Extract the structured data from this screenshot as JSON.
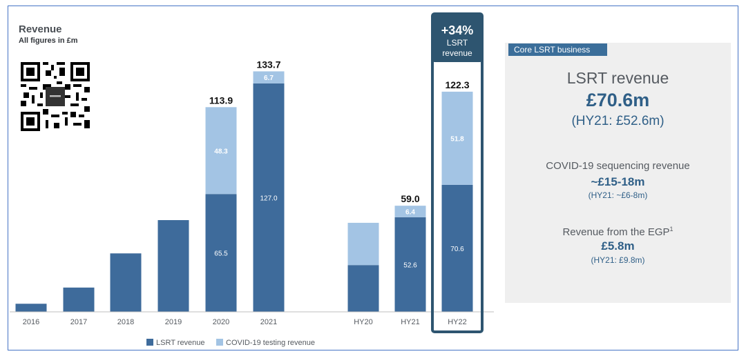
{
  "header": {
    "title": "Revenue",
    "subtitle": "All figures in £m"
  },
  "highlight": {
    "growth": "+34%",
    "line1": "LSRT",
    "line2": "revenue"
  },
  "panel": {
    "tag": "Core LSRT business",
    "main_label": "LSRT revenue",
    "main_value": "£70.6m",
    "main_sub": "(HY21: £52.6m)",
    "covid_label": "COVID-19 sequencing revenue",
    "covid_value": "~£15-18m",
    "covid_sub": "(HY21: ~£6-8m)",
    "egp_label": "Revenue from the EGP",
    "egp_sup": "1",
    "egp_value": "£5.8m",
    "egp_sub": "(HY21: £9.8m)"
  },
  "chart_data": {
    "type": "bar",
    "stacked": true,
    "title": "Revenue",
    "subtitle": "All figures in £m",
    "categories": [
      "2016",
      "2017",
      "2018",
      "2019",
      "2020",
      "2021",
      "HY20",
      "HY21",
      "HY22"
    ],
    "series": [
      {
        "name": "LSRT revenue",
        "color": "#3e6b9b",
        "values": [
          4.5,
          13.5,
          32.5,
          51,
          65.5,
          127.0,
          26,
          52.6,
          70.6
        ]
      },
      {
        "name": "COVID-19 testing revenue",
        "color": "#a3c4e4",
        "values": [
          0,
          0,
          0,
          0,
          48.3,
          6.7,
          23.5,
          6.4,
          51.8
        ]
      }
    ],
    "segment_labels": {
      "LSRT revenue": [
        "",
        "",
        "",
        "",
        "65.5",
        "127.0",
        "",
        "52.6",
        "70.6"
      ],
      "COVID-19 testing revenue": [
        "",
        "",
        "",
        "",
        "48.3",
        "6.7",
        "",
        "6.4",
        "51.8"
      ]
    },
    "total_labels": [
      "",
      "",
      "",
      "",
      "113.9",
      "133.7",
      "",
      "59.0",
      "122.3"
    ],
    "highlighted_category": "HY22",
    "ylim": [
      0,
      140
    ],
    "grid": false,
    "legend": "bottom-center"
  }
}
